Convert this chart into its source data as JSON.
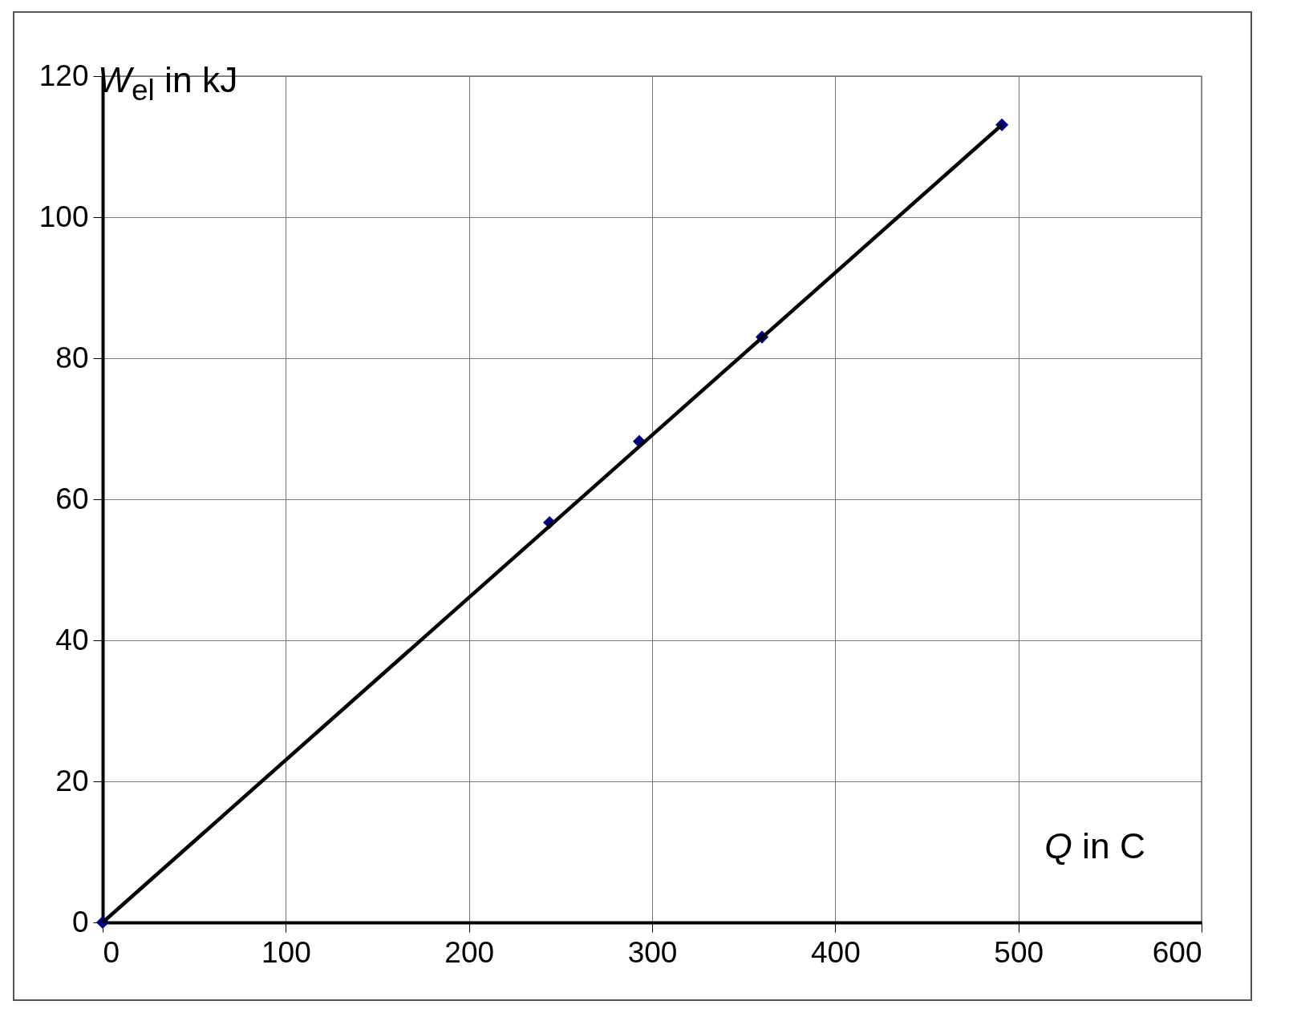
{
  "chart_data": {
    "type": "scatter",
    "xlabel": "Q in C",
    "ylabel": "W$_{el}$ in kJ",
    "xlim": [
      0,
      600
    ],
    "xticks": [
      0,
      100,
      200,
      300,
      400,
      500,
      600
    ],
    "ylim": [
      0,
      120
    ],
    "yticks": [
      0,
      20,
      40,
      60,
      80,
      100,
      120
    ],
    "grid": true,
    "series": [
      {
        "type": "scatter",
        "marker": "diamond",
        "color": "#000080",
        "x": [
          0,
          244,
          293,
          360,
          491
        ],
        "values": [
          0,
          56.7,
          68.2,
          83,
          113.1
        ]
      },
      {
        "type": "line",
        "color": "#000000",
        "x": [
          0,
          491
        ],
        "values": [
          0,
          113.1
        ],
        "line_style": "solid"
      }
    ]
  }
}
